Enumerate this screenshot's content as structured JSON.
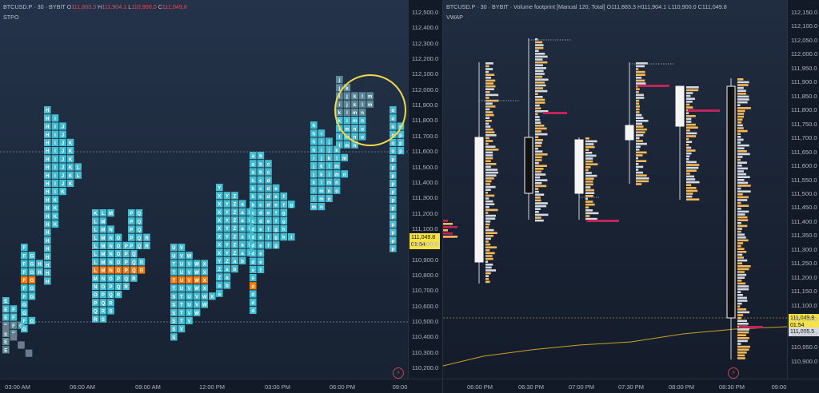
{
  "left_chart": {
    "symbol_line": "BTCUSD.P · 30 · BYBIT",
    "ohlc": {
      "o": "111,883.3",
      "h": "111,904.1",
      "l": "110,900.0",
      "c": "111,049.8"
    },
    "ohlc_prefix": {
      "o": "O",
      "h": "H",
      "l": "L",
      "c": "C"
    },
    "indicator": "STPO",
    "price_ticks": [
      "112,500.0",
      "112,400.0",
      "112,300.0",
      "112,200.0",
      "112,100.0",
      "112,000.0",
      "111,900.0",
      "111,800.0",
      "111,700.0",
      "111,600.0",
      "111,500.0",
      "111,400.0",
      "111,300.0",
      "111,200.0",
      "111,100.0",
      "111,000.0",
      "110,900.0",
      "110,800.0",
      "110,700.0",
      "110,600.0",
      "110,500.0",
      "110,400.0",
      "110,300.0",
      "110,200.0"
    ],
    "last_price": "111,049.8",
    "countdown": "01:54",
    "time_ticks": [
      "03:00 AM",
      "06:00 AM",
      "09:00 AM",
      "12:00 PM",
      "03:00 PM",
      "06:00 PM",
      "09:00"
    ],
    "colors": {
      "cyan": "#45bcd0",
      "teal_dim": "#5c8a9a",
      "orange": "#f07e10",
      "gray": "#6b7c8e",
      "highlight": "#f0d84a"
    }
  },
  "right_chart": {
    "symbol_line": "BTCUSD.P · 30 · BYBIT · Volume footprint [Manual 120, Total]",
    "ohlc": {
      "o": "111,883.3",
      "h": "111,904.1",
      "l": "110,900.0",
      "c": "111,049.8"
    },
    "ohlc_prefix": {
      "o": "O",
      "h": "H",
      "l": "L",
      "c": "C"
    },
    "indicator": "VWAP",
    "price_ticks": [
      "112,150.0",
      "112,100.0",
      "112,050.0",
      "112,000.0",
      "111,950.0",
      "111,900.0",
      "111,850.0",
      "111,800.0",
      "111,750.0",
      "111,700.0",
      "111,650.0",
      "111,600.0",
      "111,550.0",
      "111,500.0",
      "111,450.0",
      "111,400.0",
      "111,350.0",
      "111,300.0",
      "111,250.0",
      "111,200.0",
      "111,150.0",
      "111,100.0",
      "111,050.0",
      "111,000.0",
      "110,950.0",
      "110,900.0"
    ],
    "last_price": "111,049.8",
    "countdown": "01:54",
    "vwap_price": "111,005.5",
    "time_ticks": [
      "06:00 PM",
      "06:30 PM",
      "07:00 PM",
      "07:30 PM",
      "08:00 PM",
      "08:30 PM",
      "09:00"
    ],
    "colors": {
      "buy": "#f5b85a",
      "sell": "#d6dae0",
      "poc": "#c0245a",
      "vwap": "#c9a227"
    }
  }
}
